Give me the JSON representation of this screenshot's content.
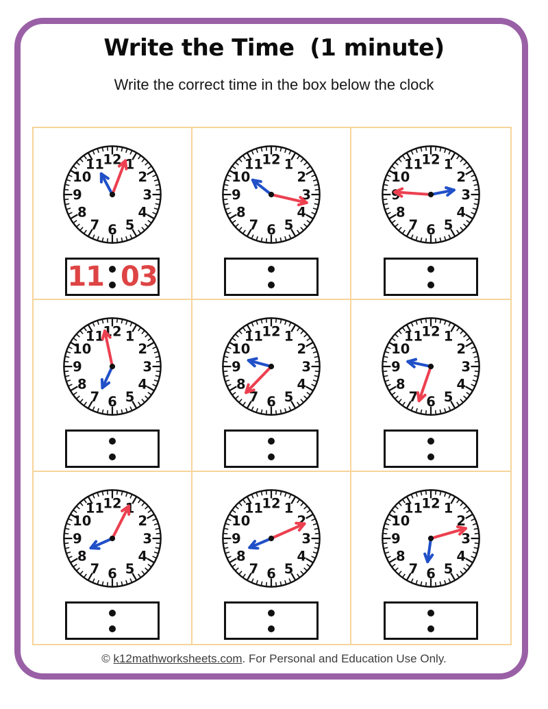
{
  "header": {
    "title": "Write the Time  (1 minute)",
    "subtitle": "Write the correct time in the box below the clock"
  },
  "footer": {
    "prefix": "© ",
    "link_text": "k12mathworksheets.com",
    "suffix": ". For Personal and Education Use Only."
  },
  "colors": {
    "frame_purple": "#9A60A6",
    "grid_line_orange": "#F7D49A",
    "minute_hand_red": "#EC4050",
    "hour_hand_blue": "#2150C8",
    "answer_red": "#DE4444",
    "ink": "#111111"
  },
  "clock_face": {
    "dial_numbers": [
      "1",
      "2",
      "3",
      "4",
      "5",
      "6",
      "7",
      "8",
      "9",
      "10",
      "11",
      "12"
    ]
  },
  "clocks": [
    {
      "position": "row1-col1",
      "hour_hand_angle_deg": 332,
      "minute_hand_angle_deg": 21,
      "answer_hours": "11",
      "answer_minutes": "03"
    },
    {
      "position": "row1-col2",
      "hour_hand_angle_deg": 308,
      "minute_hand_angle_deg": 103,
      "answer_hours": "",
      "answer_minutes": ""
    },
    {
      "position": "row1-col3",
      "hour_hand_angle_deg": 79,
      "minute_hand_angle_deg": 274,
      "answer_hours": "",
      "answer_minutes": ""
    },
    {
      "position": "row2-col1",
      "hour_hand_angle_deg": 205,
      "minute_hand_angle_deg": 348,
      "answer_hours": "",
      "answer_minutes": ""
    },
    {
      "position": "row2-col2",
      "hour_hand_angle_deg": 285,
      "minute_hand_angle_deg": 224,
      "answer_hours": "",
      "answer_minutes": ""
    },
    {
      "position": "row2-col3",
      "hour_hand_angle_deg": 282,
      "minute_hand_angle_deg": 199,
      "answer_hours": "",
      "answer_minutes": ""
    },
    {
      "position": "row3-col1",
      "hour_hand_angle_deg": 246,
      "minute_hand_angle_deg": 27,
      "answer_hours": "",
      "answer_minutes": ""
    },
    {
      "position": "row3-col2",
      "hour_hand_angle_deg": 247,
      "minute_hand_angle_deg": 66,
      "answer_hours": "",
      "answer_minutes": ""
    },
    {
      "position": "row3-col3",
      "hour_hand_angle_deg": 188,
      "minute_hand_angle_deg": 74,
      "answer_hours": "",
      "answer_minutes": ""
    }
  ]
}
